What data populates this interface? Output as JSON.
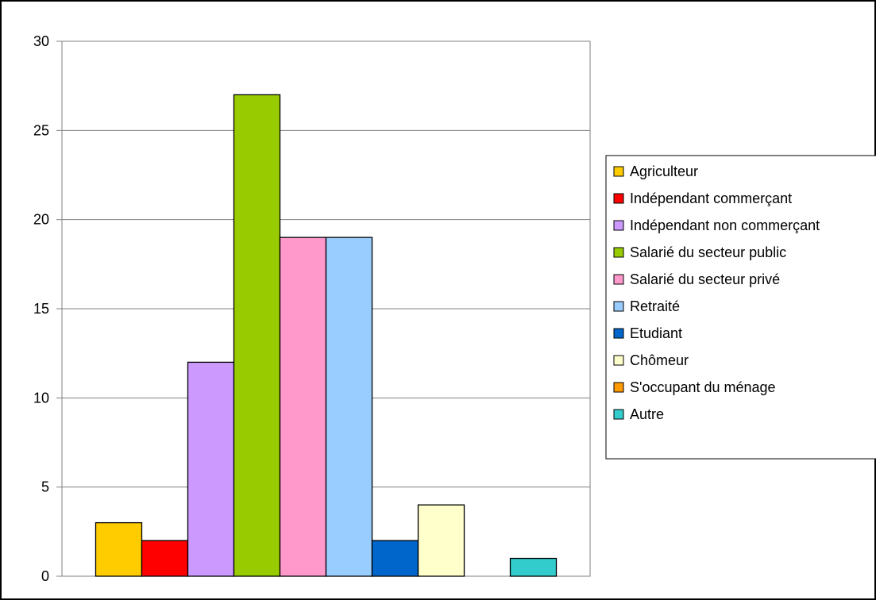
{
  "chart_data": {
    "type": "bar",
    "title": "",
    "xlabel": "",
    "ylabel": "",
    "ylim": [
      0,
      30
    ],
    "yticks": [
      0,
      5,
      10,
      15,
      20,
      25,
      30
    ],
    "grid": true,
    "legend_position": "right",
    "series": [
      {
        "name": "Agriculteur",
        "value": 3,
        "color": "#FFCC00"
      },
      {
        "name": "Indépendant commerçant",
        "value": 2,
        "color": "#FF0000"
      },
      {
        "name": "Indépendant non commerçant",
        "value": 12,
        "color": "#CC99FF"
      },
      {
        "name": "Salarié du secteur public",
        "value": 27,
        "color": "#99CC00"
      },
      {
        "name": "Salarié du secteur privé",
        "value": 19,
        "color": "#FF99CC"
      },
      {
        "name": "Retraité",
        "value": 19,
        "color": "#99CCFF"
      },
      {
        "name": "Etudiant",
        "value": 2,
        "color": "#0066CC"
      },
      {
        "name": "Chômeur",
        "value": 4,
        "color": "#FFFFCC"
      },
      {
        "name": "S'occupant du ménage",
        "value": 0,
        "color": "#FF9900"
      },
      {
        "name": "Autre",
        "value": 1,
        "color": "#33CCCC"
      }
    ]
  }
}
